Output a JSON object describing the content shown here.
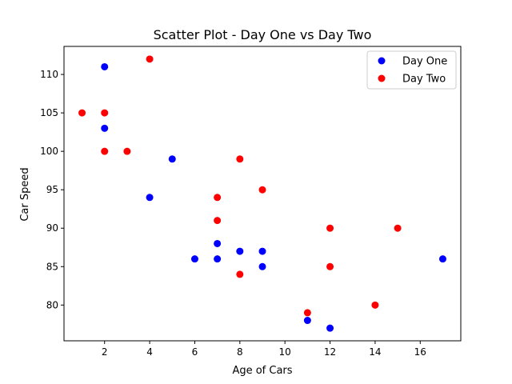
{
  "chart_data": {
    "type": "scatter",
    "title": "Scatter Plot - Day One vs Day Two",
    "xlabel": "Age of Cars",
    "ylabel": "Car Speed",
    "xlim": [
      0.2,
      17.8
    ],
    "ylim": [
      75.35,
      113.65
    ],
    "xticks": [
      2,
      4,
      6,
      8,
      10,
      12,
      14,
      16
    ],
    "yticks": [
      80,
      85,
      90,
      95,
      100,
      105,
      110
    ],
    "grid": false,
    "legend_position": "top-right",
    "series": [
      {
        "name": "Day One",
        "color": "#0000ff",
        "x": [
          5,
          7,
          8,
          7,
          2,
          17,
          2,
          9,
          4,
          11,
          12,
          9,
          6
        ],
        "y": [
          99,
          86,
          87,
          88,
          111,
          86,
          103,
          87,
          94,
          78,
          77,
          85,
          86
        ]
      },
      {
        "name": "Day Two",
        "color": "#ff0000",
        "x": [
          2,
          2,
          8,
          1,
          15,
          8,
          12,
          9,
          7,
          3,
          11,
          4,
          7,
          14,
          12
        ],
        "y": [
          100,
          105,
          84,
          105,
          90,
          99,
          90,
          95,
          94,
          100,
          79,
          112,
          91,
          80,
          85
        ]
      }
    ]
  }
}
